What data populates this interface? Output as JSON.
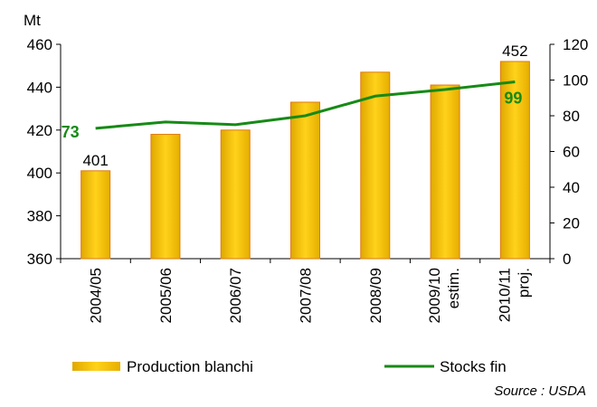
{
  "chart_data": {
    "type": "bar_line",
    "y_unit": "Mt",
    "categories": [
      "2004/05",
      "2005/06",
      "2006/07",
      "2007/08",
      "2008/09",
      "2009/10",
      "2010/11"
    ],
    "category_notes": [
      null,
      null,
      null,
      null,
      null,
      "estim.",
      "proj."
    ],
    "series": [
      {
        "name": "Production blanchi",
        "type": "bar",
        "color": "#f2bd00",
        "values": [
          401,
          418,
          420,
          433,
          447,
          441,
          452
        ],
        "value_labels": [
          "401",
          null,
          null,
          null,
          null,
          null,
          "452"
        ]
      },
      {
        "name": "Stocks fin",
        "type": "line",
        "axis": "y2",
        "color": "#168a16",
        "values": [
          73,
          76.5,
          75,
          80,
          91,
          94.7,
          99
        ],
        "value_labels": [
          "73",
          null,
          null,
          null,
          null,
          null,
          "99"
        ]
      }
    ],
    "ylim": [
      360,
      460
    ],
    "yticks": [
      360,
      380,
      400,
      420,
      440,
      460
    ],
    "y2lim": [
      0,
      120
    ],
    "y2ticks": [
      0,
      20,
      40,
      60,
      80,
      100,
      120
    ],
    "source": "Source : USDA"
  }
}
